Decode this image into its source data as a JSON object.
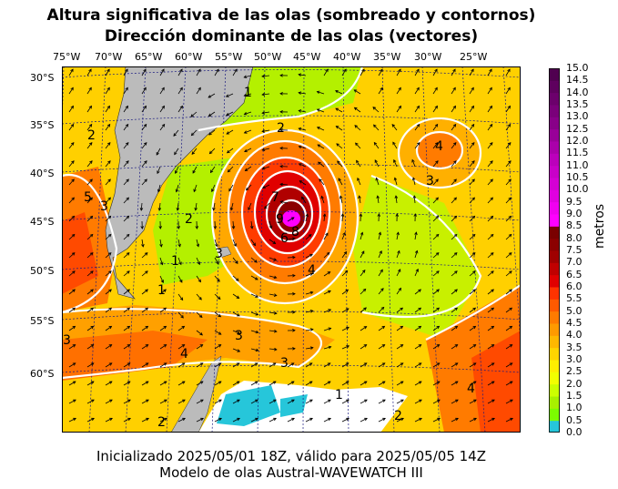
{
  "title_line1": "Altura significativa de las olas (sombreado y contornos)",
  "title_line2": "Dirección dominante de las olas (vectores)",
  "lon_labels": [
    "75°W",
    "70°W",
    "65°W",
    "60°W",
    "55°W",
    "50°W",
    "45°W",
    "40°W",
    "35°W",
    "30°W",
    "25°W"
  ],
  "lat_labels": [
    "30°S",
    "35°S",
    "40°S",
    "45°S",
    "50°S",
    "55°S",
    "60°S"
  ],
  "colorbar": {
    "unit": "metros",
    "ticks": [
      "15.0",
      "14.5",
      "14.0",
      "13.5",
      "13.0",
      "12.5",
      "12.0",
      "11.5",
      "11.0",
      "10.5",
      "10.0",
      "9.5",
      "9.0",
      "8.5",
      "8.0",
      "7.5",
      "7.0",
      "6.5",
      "6.0",
      "5.5",
      "5.0",
      "4.5",
      "4.0",
      "3.5",
      "3.0",
      "2.5",
      "2.0",
      "1.5",
      "1.0",
      "0.5",
      "0.0"
    ]
  },
  "contour_labels": [
    "1",
    "2",
    "3",
    "4",
    "5",
    "6",
    "7",
    "8",
    "9"
  ],
  "footer_line1": "Inicializado 2025/05/01 18Z, válido para 2025/05/05 14Z",
  "footer_line2": "Modelo de olas Austral-WAVEWATCH III"
}
